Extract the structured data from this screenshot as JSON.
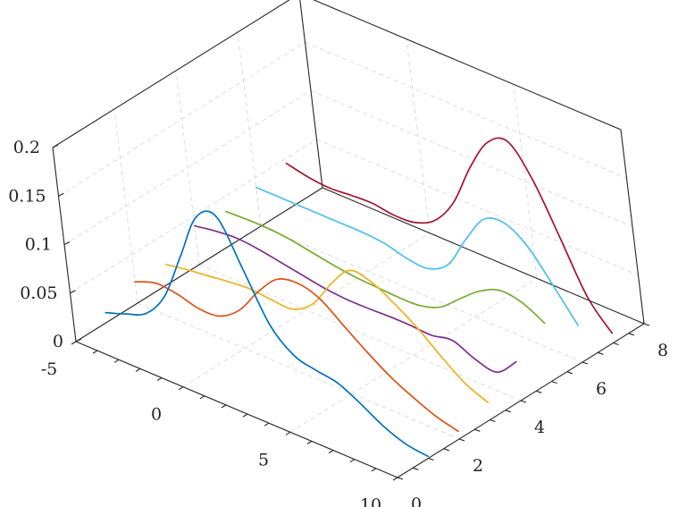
{
  "chart_data": {
    "type": "line",
    "view": "3d-ribbon",
    "title": "",
    "xlabel": "",
    "ylabel": "",
    "zlabel": "",
    "xlim": [
      -5,
      10
    ],
    "ylim": [
      0,
      8
    ],
    "zlim": [
      0,
      0.2
    ],
    "x_ticks": [
      -5,
      0,
      5,
      10
    ],
    "y_ticks": [
      0,
      2,
      4,
      6,
      8
    ],
    "z_ticks": [
      0,
      0.05,
      0.1,
      0.15,
      0.2
    ],
    "x_tick_labels": [
      "-5",
      "0",
      "5",
      "10"
    ],
    "y_tick_labels": [
      "0",
      "2",
      "4",
      "6",
      "8"
    ],
    "z_tick_labels": [
      "0",
      "0.05",
      "0.1",
      "0.15",
      "0.2"
    ],
    "grid": true,
    "legend": "none",
    "series": [
      {
        "y": 1,
        "color": "#0072bd",
        "x": [
          -5,
          -4,
          -3,
          -2,
          -1,
          0,
          1,
          2,
          3,
          4,
          5,
          6,
          7,
          8,
          9,
          10
        ],
        "z": [
          0.01,
          0.018,
          0.028,
          0.055,
          0.105,
          0.155,
          0.165,
          0.12,
          0.072,
          0.05,
          0.044,
          0.04,
          0.028,
          0.014,
          0.005,
          0.002
        ]
      },
      {
        "y": 2,
        "color": "#d95319",
        "x": [
          -5,
          -4,
          -3,
          -2,
          -1,
          0,
          1,
          2,
          3,
          4,
          5,
          6,
          7,
          8,
          9,
          10
        ],
        "z": [
          0.022,
          0.03,
          0.028,
          0.022,
          0.024,
          0.04,
          0.068,
          0.09,
          0.095,
          0.088,
          0.07,
          0.052,
          0.036,
          0.024,
          0.014,
          0.008
        ]
      },
      {
        "y": 3,
        "color": "#edb120",
        "x": [
          -5,
          -4,
          -3,
          -2,
          -1,
          0,
          1,
          2,
          3,
          4,
          5,
          6,
          7,
          8,
          9,
          10
        ],
        "z": [
          0.02,
          0.024,
          0.027,
          0.03,
          0.032,
          0.03,
          0.03,
          0.045,
          0.075,
          0.098,
          0.095,
          0.082,
          0.066,
          0.046,
          0.028,
          0.018
        ]
      },
      {
        "y": 4,
        "color": "#7e2f8e",
        "x": [
          -5,
          -4,
          -3,
          -2,
          -1,
          0,
          1,
          2,
          3,
          4,
          5,
          6,
          7,
          8,
          9,
          10
        ],
        "z": [
          0.04,
          0.044,
          0.046,
          0.044,
          0.04,
          0.036,
          0.032,
          0.03,
          0.03,
          0.031,
          0.031,
          0.03,
          0.034,
          0.024,
          0.02,
          0.04
        ]
      },
      {
        "y": 5,
        "color": "#77ac30",
        "x": [
          -5,
          -4,
          -3,
          -2,
          -1,
          0,
          1,
          2,
          3,
          4,
          5,
          6,
          7,
          8,
          9,
          10
        ],
        "z": [
          0.035,
          0.036,
          0.036,
          0.034,
          0.03,
          0.026,
          0.023,
          0.022,
          0.021,
          0.022,
          0.03,
          0.048,
          0.065,
          0.075,
          0.072,
          0.06
        ]
      },
      {
        "y": 6,
        "color": "#4dbeee",
        "x": [
          -5,
          -4,
          -3,
          -2,
          -1,
          0,
          1,
          2,
          3,
          4,
          5,
          6,
          7,
          8,
          9,
          10
        ],
        "z": [
          0.04,
          0.04,
          0.04,
          0.04,
          0.04,
          0.04,
          0.038,
          0.032,
          0.031,
          0.045,
          0.08,
          0.11,
          0.115,
          0.1,
          0.07,
          0.038
        ]
      },
      {
        "y": 7,
        "color": "#a2142f",
        "x": [
          -5,
          -4,
          -3,
          -2,
          -1,
          0,
          1,
          2,
          3,
          4,
          5,
          6,
          7,
          8,
          9,
          10
        ],
        "z": [
          0.045,
          0.04,
          0.038,
          0.04,
          0.041,
          0.038,
          0.04,
          0.052,
          0.08,
          0.125,
          0.16,
          0.17,
          0.14,
          0.09,
          0.038,
          0.01
        ]
      }
    ]
  }
}
